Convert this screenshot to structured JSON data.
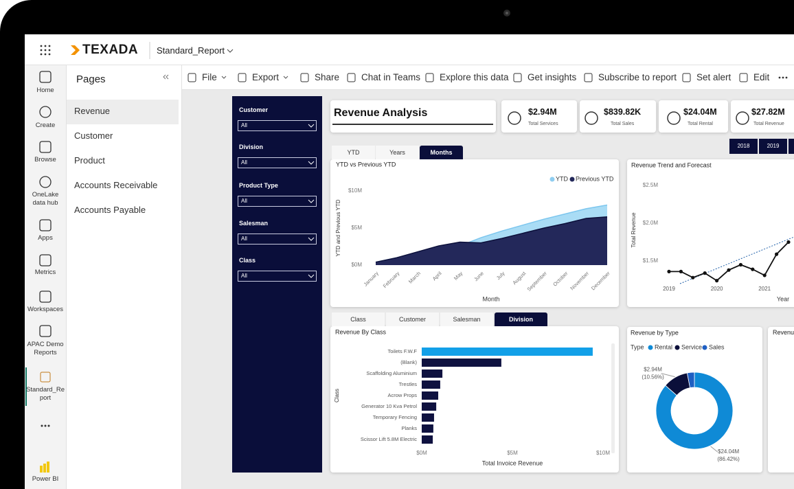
{
  "window": {
    "brand": "TEXADA",
    "report_name": "Standard_Report"
  },
  "nav": [
    "Home",
    "Create",
    "Browse",
    "OneLake data hub",
    "Apps",
    "Metrics",
    "Workspaces",
    "APAC Demo Reports",
    "Standard_Report",
    "Power BI"
  ],
  "pages": {
    "title": "Pages",
    "items": [
      "Revenue",
      "Customer",
      "Product",
      "Accounts Receivable",
      "Accounts Payable"
    ]
  },
  "toolbar": [
    "File",
    "Export",
    "Share",
    "Chat in Teams",
    "Explore this data",
    "Get insights",
    "Subscribe to report",
    "Set alert",
    "Edit"
  ],
  "filters": [
    {
      "label": "Customer",
      "value": "All"
    },
    {
      "label": "Division",
      "value": "All"
    },
    {
      "label": "Product Type",
      "value": "All"
    },
    {
      "label": "Salesman",
      "value": "All"
    },
    {
      "label": "Class",
      "value": "All"
    }
  ],
  "report": {
    "title": "Revenue Analysis",
    "kpis": [
      {
        "value": "$2.94M",
        "label": "Total Services"
      },
      {
        "value": "$839.82K",
        "label": "Total Sales"
      },
      {
        "value": "$24.04M",
        "label": "Total Rental"
      },
      {
        "value": "$27.82M",
        "label": "Total Revenue"
      }
    ],
    "period_tabs": [
      "YTD",
      "Years",
      "Months"
    ],
    "years": [
      "2018",
      "2019"
    ],
    "breakdown_tabs": [
      "Class",
      "Customer",
      "Salesman",
      "Division"
    ],
    "clipped_title": "Revenu"
  },
  "chart_data": [
    {
      "type": "area",
      "title": "YTD vs Previous YTD",
      "x_label": "Month",
      "y_label": "YTD and Previous YTD",
      "categories": [
        "January",
        "February",
        "March",
        "April",
        "May",
        "June",
        "July",
        "August",
        "September",
        "October",
        "November",
        "December"
      ],
      "series": [
        {
          "name": "YTD",
          "color": "#a9dcf5",
          "values": [
            0.4,
            1.0,
            1.7,
            2.4,
            2.6,
            3.7,
            4.6,
            5.4,
            6.2,
            6.9,
            7.6,
            8.1
          ]
        },
        {
          "name": "Previous YTD",
          "color": "#23285a",
          "values": [
            0.4,
            1.0,
            1.8,
            2.6,
            3.1,
            3.0,
            3.6,
            4.3,
            5.0,
            5.6,
            6.3,
            6.5
          ]
        }
      ],
      "ylim": [
        0,
        10
      ],
      "yticks": [
        {
          "value": 0,
          "label": "$0M"
        },
        {
          "value": 5,
          "label": "$5M"
        },
        {
          "value": 10,
          "label": "$10M"
        }
      ]
    },
    {
      "type": "line",
      "title": "Revenue Trend and Forecast",
      "x_label": "Year",
      "y_label": "Total Revenue",
      "categories": [
        "2019",
        null,
        null,
        null,
        "2020",
        null,
        null,
        null,
        "2021",
        null,
        null
      ],
      "values": [
        1.36,
        1.36,
        1.28,
        1.34,
        1.24,
        1.38,
        1.45,
        1.39,
        1.31,
        1.59,
        1.75
      ],
      "color": "#111111",
      "ylim": [
        1.2,
        2.6
      ],
      "yticks": [
        {
          "value": 1.5,
          "label": "$1.5M"
        },
        {
          "value": 2.0,
          "label": "$2.0M"
        },
        {
          "value": 2.5,
          "label": "$2.5M"
        }
      ]
    },
    {
      "type": "bar",
      "title": "Revenue By Class",
      "x_label": "Total Invoice Revenue",
      "y_label": "Class",
      "categories": [
        "Toilets F.W.F",
        "(Blank)",
        "Scaffolding Aluminium",
        "Trestles",
        "Acrow Props",
        "Generator 10 Kva Petrol",
        "Temporary Fencing",
        "Planks",
        "Scissor Lift 5.8M Electric"
      ],
      "values": [
        9.43,
        4.39,
        1.14,
        1.02,
        0.91,
        0.8,
        0.68,
        0.64,
        0.61
      ],
      "colors": [
        "#12a0e8",
        "#0f1240",
        "#0f1240",
        "#0f1240",
        "#0f1240",
        "#0f1240",
        "#0f1240",
        "#0f1240",
        "#0f1240"
      ],
      "xlim": [
        0,
        10
      ],
      "xticks": [
        {
          "value": 0,
          "label": "$0M"
        },
        {
          "value": 5,
          "label": "$5M"
        },
        {
          "value": 10,
          "label": "$10M"
        }
      ]
    },
    {
      "type": "pie",
      "donut": true,
      "title": "Revenue by Type",
      "legend_title": "Type",
      "categories": [
        "Rental",
        "Service",
        "Sales"
      ],
      "values": [
        24.04,
        2.94,
        0.84
      ],
      "colors": [
        "#0f8ad6",
        "#0b0f3a",
        "#1f5fc2"
      ],
      "value_labels": [
        "$24.04M",
        "$2.94M",
        null
      ],
      "percent_labels": [
        "(86.42%)",
        "(10.56%)",
        null
      ]
    }
  ]
}
